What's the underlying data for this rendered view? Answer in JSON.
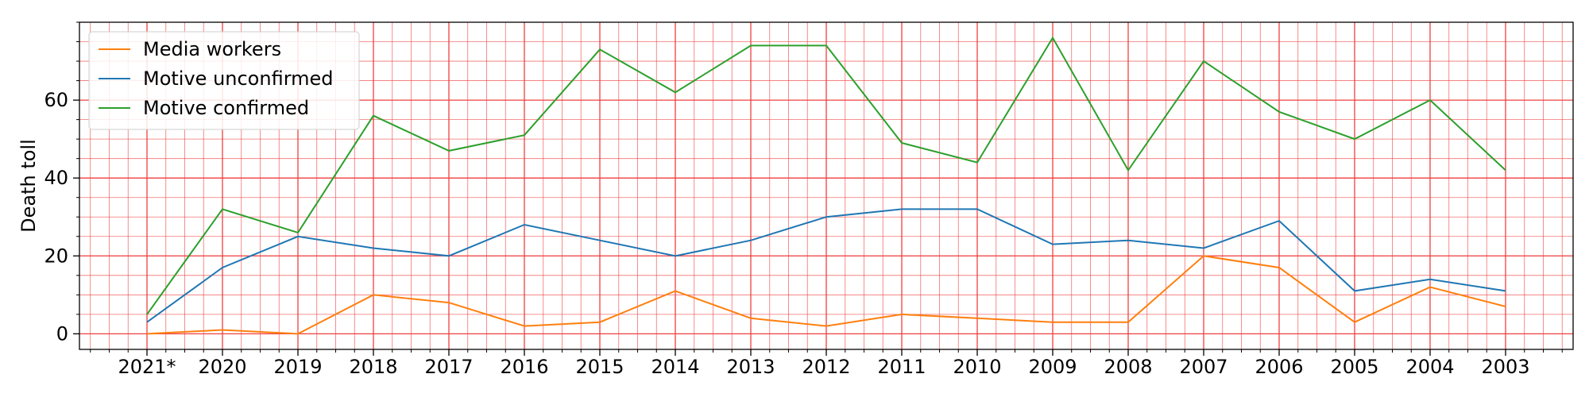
{
  "chart_data": {
    "type": "line",
    "title": "",
    "xlabel": "",
    "ylabel": "Death toll",
    "categories": [
      "2021*",
      "2020",
      "2019",
      "2018",
      "2017",
      "2016",
      "2015",
      "2014",
      "2013",
      "2012",
      "2011",
      "2010",
      "2009",
      "2008",
      "2007",
      "2006",
      "2005",
      "2004",
      "2003"
    ],
    "series": [
      {
        "name": "Media workers",
        "color": "#ff7f0e",
        "values": [
          0,
          1,
          0,
          10,
          8,
          2,
          3,
          11,
          4,
          2,
          5,
          4,
          3,
          3,
          20,
          17,
          3,
          12,
          7
        ]
      },
      {
        "name": "Motive unconfirmed",
        "color": "#1f77b4",
        "values": [
          3,
          17,
          25,
          22,
          20,
          28,
          24,
          20,
          24,
          30,
          32,
          32,
          23,
          24,
          22,
          29,
          11,
          14,
          11
        ]
      },
      {
        "name": "Motive confirmed",
        "color": "#2ca02c",
        "values": [
          5,
          32,
          26,
          56,
          47,
          51,
          73,
          62,
          74,
          74,
          49,
          44,
          76,
          42,
          70,
          57,
          50,
          60,
          42
        ]
      }
    ],
    "ylim": [
      -4,
      80
    ],
    "yticks": [
      0,
      20,
      40,
      60
    ],
    "grid": true,
    "grid_minor": true,
    "grid_color": "#f04040",
    "legend_position": "upper-left"
  }
}
